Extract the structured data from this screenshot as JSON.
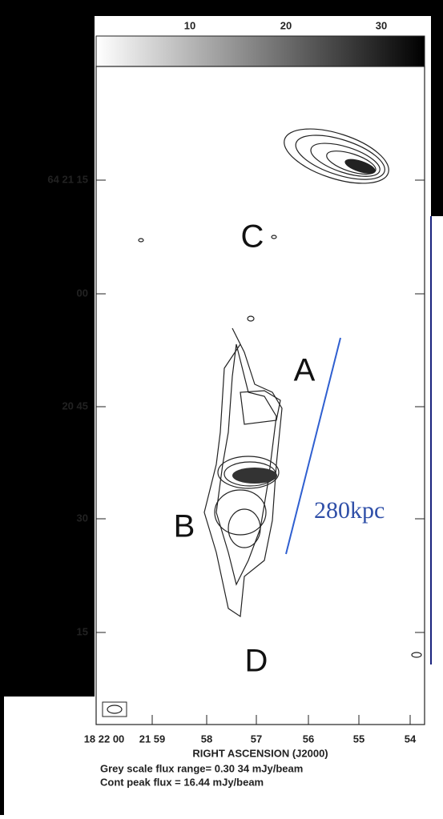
{
  "colorbar": {
    "ticks": [
      "10",
      "20",
      "30"
    ]
  },
  "dec_labels": [
    "64 21 15",
    "00",
    "20 45",
    "30",
    "15"
  ],
  "ra_labels": [
    "18 22 00",
    "21 59",
    "58",
    "57",
    "56",
    "55",
    "54"
  ],
  "x_axis_title": "RIGHT ASCENSION (J2000)",
  "caption": [
    "Grey scale flux range= 0.30 34 mJy/beam",
    "Cont peak flux =  16.44 mJy/beam"
  ],
  "regions": [
    "A",
    "B",
    "C",
    "D"
  ],
  "scale_label": "280kpc"
}
